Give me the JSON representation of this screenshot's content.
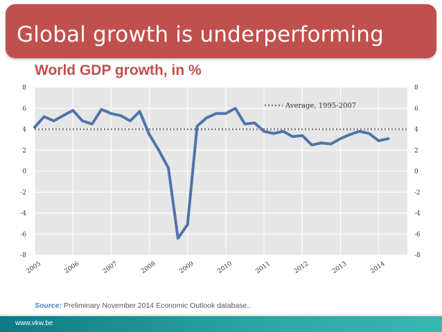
{
  "slide": {
    "title": "Global growth is underperforming",
    "subtitle": "World GDP growth, in %",
    "source_label": "Source:",
    "source_text": " Preliminary November 2014 Economic Outlook database..",
    "footer_url": "www.vkw.be"
  },
  "colors": {
    "title_bar": "#c0504d",
    "series_line": "#4f74a8",
    "average_line": "#777777",
    "plot_bg": "#e6e6e6"
  },
  "chart_data": {
    "type": "line",
    "title": "World GDP growth, in %",
    "xlabel": "",
    "ylabel": "",
    "ylim": [
      -8,
      8
    ],
    "yticks": [
      "8",
      "6",
      "4",
      "2",
      "0",
      "-2",
      "-4",
      "-6",
      "-8"
    ],
    "ytick_values": [
      8,
      6,
      4,
      2,
      0,
      -2,
      -4,
      -6,
      -8
    ],
    "xticks": [
      "2005",
      "2006",
      "2007",
      "2008",
      "2009",
      "2010",
      "2011",
      "2012",
      "2013",
      "2014"
    ],
    "x_range": [
      2005,
      2014.75
    ],
    "grid": true,
    "series": [
      {
        "name": "World GDP growth",
        "x": [
          2005.0,
          2005.25,
          2005.5,
          2005.75,
          2006.0,
          2006.25,
          2006.5,
          2006.75,
          2007.0,
          2007.25,
          2007.5,
          2007.75,
          2008.0,
          2008.25,
          2008.5,
          2008.75,
          2009.0,
          2009.25,
          2009.5,
          2009.75,
          2010.0,
          2010.25,
          2010.5,
          2010.75,
          2011.0,
          2011.25,
          2011.5,
          2011.75,
          2012.0,
          2012.25,
          2012.5,
          2012.75,
          2013.0,
          2013.25,
          2013.5,
          2013.75,
          2014.0,
          2014.25,
          2014.5
        ],
        "values": [
          4.2,
          5.2,
          4.8,
          5.3,
          5.8,
          4.8,
          4.5,
          5.9,
          5.5,
          5.3,
          4.8,
          5.7,
          3.5,
          2.0,
          0.3,
          -6.4,
          -5.1,
          4.3,
          5.1,
          5.5,
          5.5,
          6.0,
          4.5,
          4.6,
          3.8,
          3.6,
          3.8,
          3.3,
          3.4,
          2.5,
          2.7,
          2.6,
          3.1,
          3.5,
          3.8,
          3.6,
          2.9,
          3.1,
          null
        ]
      }
    ],
    "average": {
      "label": "Average, 1995-2007",
      "value": 4.0
    },
    "legend_position": "top-right"
  }
}
